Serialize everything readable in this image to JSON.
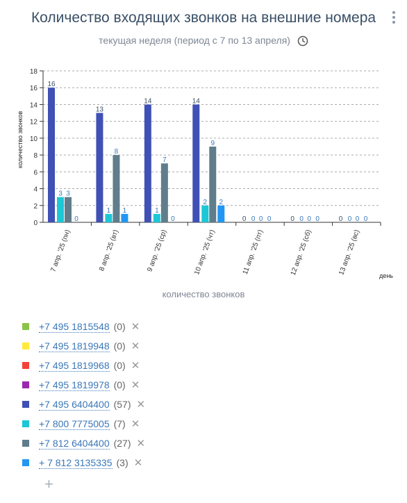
{
  "header": {
    "title": "Количество входящих звонков на внешние номера",
    "subtitle": "текущая неделя (период с 7 по 13 апреля)"
  },
  "chart_data": {
    "type": "bar",
    "categories": [
      "7 апр. '25 (пн)",
      "8 апр. '25 (вт)",
      "9 апр. '25 (ср)",
      "10 апр. '25 (чт)",
      "11 апр. '25 (пт)",
      "12 апр. '25 (сб)",
      "13 апр. '25 (вс)"
    ],
    "series": [
      {
        "name": "+7 495 6404400",
        "color": "#3f51b5",
        "values": [
          16,
          13,
          14,
          14,
          0,
          0,
          0
        ]
      },
      {
        "name": "+7 800 7775005",
        "color": "#1cc7d6",
        "values": [
          3,
          1,
          1,
          2,
          0,
          0,
          0
        ]
      },
      {
        "name": "+7 812 6404400",
        "color": "#607d8b",
        "values": [
          3,
          8,
          7,
          9,
          0,
          0,
          0
        ]
      },
      {
        "name": "+ 7 812 3135335",
        "color": "#2196f3",
        "values": [
          0,
          1,
          0,
          2,
          0,
          0,
          0
        ]
      }
    ],
    "ylabel": "количество звонков",
    "xlabel": "день",
    "caption": "количество звонков",
    "ylim": [
      0,
      18
    ],
    "yticks": [
      0,
      2,
      4,
      6,
      8,
      10,
      12,
      14,
      16,
      18
    ],
    "grid": true
  },
  "legend": [
    {
      "phone": "+7 495 1815548",
      "count": "(0)",
      "color": "#8bc34a"
    },
    {
      "phone": "+7 495 1819948",
      "count": "(0)",
      "color": "#ffeb3b"
    },
    {
      "phone": "+7 495 1819968",
      "count": "(0)",
      "color": "#f44336"
    },
    {
      "phone": "+7 495 1819978",
      "count": "(0)",
      "color": "#9c27b0"
    },
    {
      "phone": "+7 495 6404400",
      "count": "(57)",
      "color": "#3f51b5"
    },
    {
      "phone": "+7 800 7775005",
      "count": "(7)",
      "color": "#1cc7d6"
    },
    {
      "phone": "+7 812 6404400",
      "count": "(27)",
      "color": "#607d8b"
    },
    {
      "phone": "+ 7 812 3135335",
      "count": "(3)",
      "color": "#2196f3"
    }
  ],
  "controls": {
    "remove_glyph": "✕",
    "add_glyph": "+"
  }
}
